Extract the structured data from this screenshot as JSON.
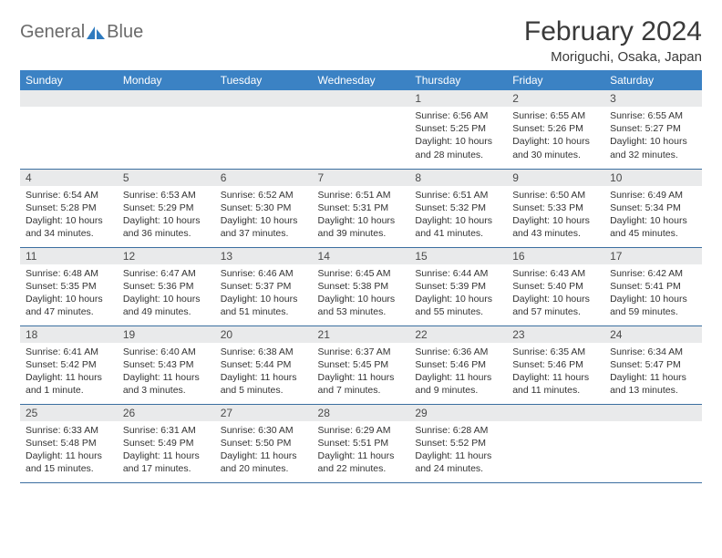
{
  "logo": {
    "text1": "General",
    "text2": "Blue"
  },
  "title": "February 2024",
  "location": "Moriguchi, Osaka, Japan",
  "colors": {
    "header_bg": "#3b82c4",
    "header_text": "#ffffff",
    "daynum_bg": "#e9eaeb",
    "border": "#3b6fa0",
    "logo_blue": "#2f7bbf"
  },
  "weekdays": [
    "Sunday",
    "Monday",
    "Tuesday",
    "Wednesday",
    "Thursday",
    "Friday",
    "Saturday"
  ],
  "weeks": [
    [
      null,
      null,
      null,
      null,
      {
        "n": "1",
        "sr": "6:56 AM",
        "ss": "5:25 PM",
        "dl": "10 hours and 28 minutes."
      },
      {
        "n": "2",
        "sr": "6:55 AM",
        "ss": "5:26 PM",
        "dl": "10 hours and 30 minutes."
      },
      {
        "n": "3",
        "sr": "6:55 AM",
        "ss": "5:27 PM",
        "dl": "10 hours and 32 minutes."
      }
    ],
    [
      {
        "n": "4",
        "sr": "6:54 AM",
        "ss": "5:28 PM",
        "dl": "10 hours and 34 minutes."
      },
      {
        "n": "5",
        "sr": "6:53 AM",
        "ss": "5:29 PM",
        "dl": "10 hours and 36 minutes."
      },
      {
        "n": "6",
        "sr": "6:52 AM",
        "ss": "5:30 PM",
        "dl": "10 hours and 37 minutes."
      },
      {
        "n": "7",
        "sr": "6:51 AM",
        "ss": "5:31 PM",
        "dl": "10 hours and 39 minutes."
      },
      {
        "n": "8",
        "sr": "6:51 AM",
        "ss": "5:32 PM",
        "dl": "10 hours and 41 minutes."
      },
      {
        "n": "9",
        "sr": "6:50 AM",
        "ss": "5:33 PM",
        "dl": "10 hours and 43 minutes."
      },
      {
        "n": "10",
        "sr": "6:49 AM",
        "ss": "5:34 PM",
        "dl": "10 hours and 45 minutes."
      }
    ],
    [
      {
        "n": "11",
        "sr": "6:48 AM",
        "ss": "5:35 PM",
        "dl": "10 hours and 47 minutes."
      },
      {
        "n": "12",
        "sr": "6:47 AM",
        "ss": "5:36 PM",
        "dl": "10 hours and 49 minutes."
      },
      {
        "n": "13",
        "sr": "6:46 AM",
        "ss": "5:37 PM",
        "dl": "10 hours and 51 minutes."
      },
      {
        "n": "14",
        "sr": "6:45 AM",
        "ss": "5:38 PM",
        "dl": "10 hours and 53 minutes."
      },
      {
        "n": "15",
        "sr": "6:44 AM",
        "ss": "5:39 PM",
        "dl": "10 hours and 55 minutes."
      },
      {
        "n": "16",
        "sr": "6:43 AM",
        "ss": "5:40 PM",
        "dl": "10 hours and 57 minutes."
      },
      {
        "n": "17",
        "sr": "6:42 AM",
        "ss": "5:41 PM",
        "dl": "10 hours and 59 minutes."
      }
    ],
    [
      {
        "n": "18",
        "sr": "6:41 AM",
        "ss": "5:42 PM",
        "dl": "11 hours and 1 minute."
      },
      {
        "n": "19",
        "sr": "6:40 AM",
        "ss": "5:43 PM",
        "dl": "11 hours and 3 minutes."
      },
      {
        "n": "20",
        "sr": "6:38 AM",
        "ss": "5:44 PM",
        "dl": "11 hours and 5 minutes."
      },
      {
        "n": "21",
        "sr": "6:37 AM",
        "ss": "5:45 PM",
        "dl": "11 hours and 7 minutes."
      },
      {
        "n": "22",
        "sr": "6:36 AM",
        "ss": "5:46 PM",
        "dl": "11 hours and 9 minutes."
      },
      {
        "n": "23",
        "sr": "6:35 AM",
        "ss": "5:46 PM",
        "dl": "11 hours and 11 minutes."
      },
      {
        "n": "24",
        "sr": "6:34 AM",
        "ss": "5:47 PM",
        "dl": "11 hours and 13 minutes."
      }
    ],
    [
      {
        "n": "25",
        "sr": "6:33 AM",
        "ss": "5:48 PM",
        "dl": "11 hours and 15 minutes."
      },
      {
        "n": "26",
        "sr": "6:31 AM",
        "ss": "5:49 PM",
        "dl": "11 hours and 17 minutes."
      },
      {
        "n": "27",
        "sr": "6:30 AM",
        "ss": "5:50 PM",
        "dl": "11 hours and 20 minutes."
      },
      {
        "n": "28",
        "sr": "6:29 AM",
        "ss": "5:51 PM",
        "dl": "11 hours and 22 minutes."
      },
      {
        "n": "29",
        "sr": "6:28 AM",
        "ss": "5:52 PM",
        "dl": "11 hours and 24 minutes."
      },
      null,
      null
    ]
  ],
  "labels": {
    "sunrise": "Sunrise:",
    "sunset": "Sunset:",
    "daylight": "Daylight:"
  }
}
